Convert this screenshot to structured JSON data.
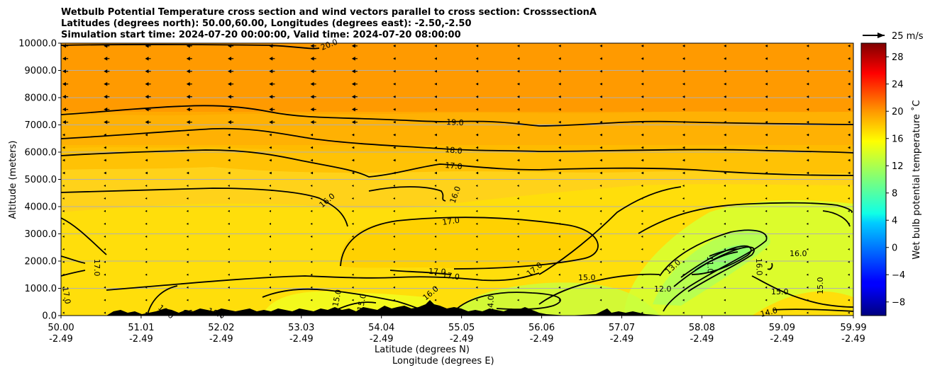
{
  "chart_data": {
    "type": "contour",
    "title_lines": [
      "Wetbulb Potential Temperature cross section and wind vectors parallel to cross section: CrosssectionA",
      "Latitudes (degrees north): 50.00,60.00, Longitudes (degrees east): -2.50,-2.50",
      "Simulation start time: 2024-07-20 00:00:00, Valid time: 2024-07-20 08:00:00"
    ],
    "ylabel": "Altitude (meters)",
    "xlabel": "Latitude (degrees N)",
    "xlabel2": "Longitude (degrees E)",
    "ylim": [
      0,
      10000
    ],
    "xlim": [
      50.0,
      59.99
    ],
    "y_ticks": [
      "0.0",
      "1000.0",
      "2000.0",
      "3000.0",
      "4000.0",
      "5000.0",
      "6000.0",
      "7000.0",
      "8000.0",
      "9000.0",
      "10000.0"
    ],
    "x_ticks": [
      {
        "lat": "50.00",
        "lon": "-2.49"
      },
      {
        "lat": "51.01",
        "lon": "-2.49"
      },
      {
        "lat": "52.02",
        "lon": "-2.49"
      },
      {
        "lat": "53.03",
        "lon": "-2.49"
      },
      {
        "lat": "54.04",
        "lon": "-2.49"
      },
      {
        "lat": "55.05",
        "lon": "-2.49"
      },
      {
        "lat": "56.06",
        "lon": "-2.49"
      },
      {
        "lat": "57.07",
        "lon": "-2.49"
      },
      {
        "lat": "58.08",
        "lon": "-2.49"
      },
      {
        "lat": "59.09",
        "lon": "-2.49"
      },
      {
        "lat": "59.99",
        "lon": "-2.49"
      }
    ],
    "grid": true,
    "colorbar": {
      "label": "Wet bulb potential temperature ˚C",
      "range": [
        -10,
        30
      ],
      "ticks": [
        "−8",
        "−4",
        "0",
        "4",
        "8",
        "12",
        "16",
        "20",
        "24",
        "28"
      ],
      "tick_values": [
        -8,
        -4,
        0,
        4,
        8,
        12,
        16,
        20,
        24,
        28
      ],
      "colormap": "jet"
    },
    "quiver_key": {
      "label": "25 m/s",
      "value": 25
    },
    "contour_labels": [
      {
        "text": "20.0",
        "lat": 53.4,
        "alt": 9900
      },
      {
        "text": "19.0",
        "lat": 55.1,
        "alt": 7100
      },
      {
        "text": "18.0",
        "lat": 55.1,
        "alt": 6000
      },
      {
        "text": "17.0",
        "lat": 55.1,
        "alt": 5400
      },
      {
        "text": "16.0",
        "lat": 53.4,
        "alt": 4100
      },
      {
        "text": "16.0",
        "lat": 55.0,
        "alt": 4500
      },
      {
        "text": "17.0",
        "lat": 55.0,
        "alt": 3500
      },
      {
        "text": "17.0",
        "lat": 50.45,
        "alt": 1800
      },
      {
        "text": "17.0",
        "lat": 50.05,
        "alt": 700
      },
      {
        "text": "17.0",
        "lat": 54.7,
        "alt": 1650
      },
      {
        "text": "17.0",
        "lat": 54.9,
        "alt": 1500
      },
      {
        "text": "17.0",
        "lat": 56.0,
        "alt": 1700
      },
      {
        "text": "15.0",
        "lat": 56.6,
        "alt": 1400
      },
      {
        "text": "13.0",
        "lat": 57.8,
        "alt": 1900
      },
      {
        "text": "11.0",
        "lat": 58.2,
        "alt": 2050
      },
      {
        "text": "12.0",
        "lat": 57.55,
        "alt": 1000
      },
      {
        "text": "16.0",
        "lat": 59.0,
        "alt": 1950
      },
      {
        "text": "16.0",
        "lat": 59.3,
        "alt": 2300
      },
      {
        "text": "15.0",
        "lat": 59.2,
        "alt": 900
      },
      {
        "text": "15.0",
        "lat": 59.5,
        "alt": 1100
      },
      {
        "text": "14.0",
        "lat": 59.1,
        "alt": 100
      },
      {
        "text": "16.0",
        "lat": 54.65,
        "alt": 900
      },
      {
        "text": "15.0",
        "lat": 53.45,
        "alt": 650
      },
      {
        "text": "15.0",
        "lat": 53.7,
        "alt": 500
      },
      {
        "text": "14.0",
        "lat": 55.25,
        "alt": 550
      },
      {
        "text": "16.0",
        "lat": 51.25,
        "alt": 250
      },
      {
        "text": "16.0",
        "lat": 51.6,
        "alt": 100
      },
      {
        "text": "16.0",
        "lat": 51.95,
        "alt": 100
      }
    ],
    "temperature_field": {
      "background_upper": 21,
      "upper_level": 19,
      "mid_level": 18,
      "lower_level": 16.5,
      "cool_anomaly_min": 11,
      "warm_pool": 17.5
    },
    "winds": {
      "upper_band_speed": 9,
      "lower_band_speed": 2,
      "direction": "southward"
    }
  }
}
